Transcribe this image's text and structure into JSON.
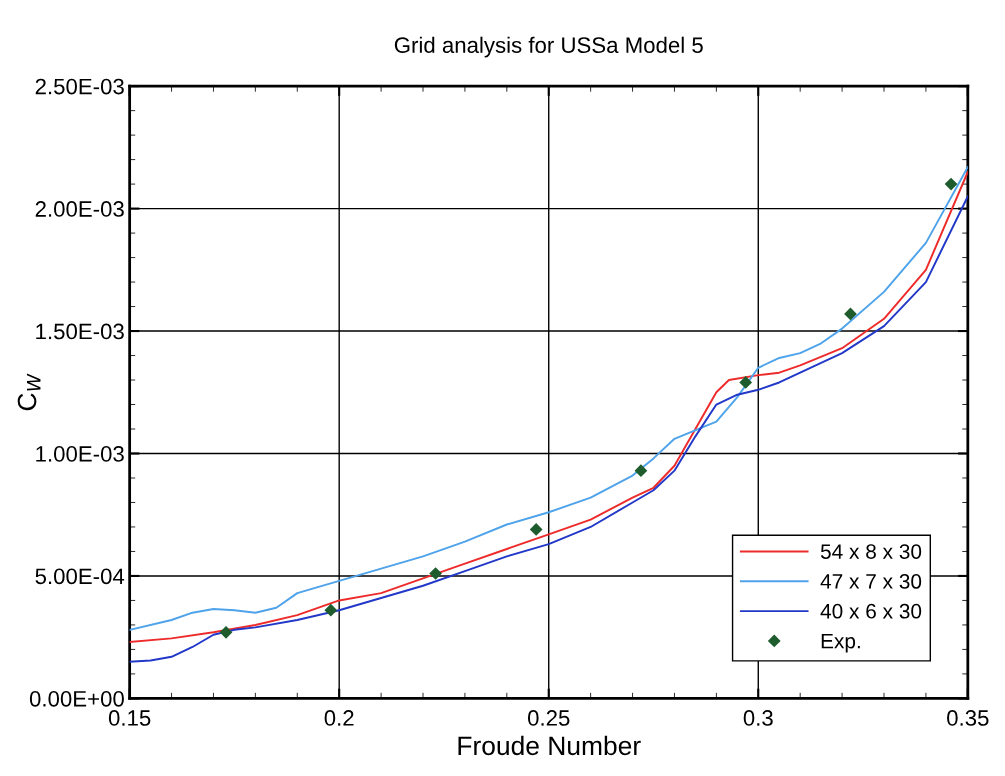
{
  "chart_data": {
    "type": "line",
    "title": "Grid analysis for USSa Model 5",
    "xlabel": "Froude Number",
    "ylabel": "C$_{W}$",
    "xlim": [
      0.15,
      0.35
    ],
    "xticks": [
      0.15,
      0.2,
      0.25,
      0.3,
      0.35
    ],
    "ylim": [
      0,
      0.0025
    ],
    "yticks": [
      {
        "value": 0,
        "label": "0.00E+00"
      },
      {
        "value": 0.0005,
        "label": "5.00E-04"
      },
      {
        "value": 0.001,
        "label": "1.00E-03"
      },
      {
        "value": 0.0015,
        "label": "1.50E-03"
      },
      {
        "value": 0.002,
        "label": "2.00E-03"
      },
      {
        "value": 0.0025,
        "label": "2.50E-03"
      }
    ],
    "grid": true,
    "legend": "bottom right",
    "series": [
      {
        "name": "54 x 8 x 30",
        "color": "#ee2b2b",
        "marker": "none",
        "x": [
          0.15,
          0.16,
          0.17,
          0.18,
          0.19,
          0.2,
          0.21,
          0.22,
          0.23,
          0.24,
          0.25,
          0.26,
          0.27,
          0.275,
          0.28,
          0.285,
          0.29,
          0.293,
          0.3,
          0.305,
          0.31,
          0.32,
          0.33,
          0.34,
          0.35
        ],
        "values": [
          0.00023,
          0.000245,
          0.00027,
          0.0003,
          0.00034,
          0.0004,
          0.00043,
          0.00049,
          0.00055,
          0.00061,
          0.00067,
          0.00073,
          0.00082,
          0.00086,
          0.00095,
          0.0011,
          0.00125,
          0.0013,
          0.00132,
          0.00133,
          0.00136,
          0.00143,
          0.00155,
          0.00175,
          0.00215
        ]
      },
      {
        "name": "47 x 7 x 30",
        "color": "#4ea3ea",
        "marker": "none",
        "x": [
          0.15,
          0.16,
          0.165,
          0.17,
          0.175,
          0.18,
          0.185,
          0.19,
          0.2,
          0.21,
          0.22,
          0.23,
          0.24,
          0.25,
          0.26,
          0.27,
          0.275,
          0.28,
          0.29,
          0.295,
          0.3,
          0.305,
          0.31,
          0.315,
          0.32,
          0.33,
          0.34,
          0.35
        ],
        "values": [
          0.00028,
          0.00032,
          0.00035,
          0.000365,
          0.00036,
          0.00035,
          0.00037,
          0.00043,
          0.00048,
          0.00053,
          0.00058,
          0.00064,
          0.00071,
          0.00076,
          0.00082,
          0.00091,
          0.00098,
          0.00106,
          0.00113,
          0.00123,
          0.00135,
          0.00139,
          0.00141,
          0.00145,
          0.00151,
          0.00166,
          0.00186,
          0.00217
        ]
      },
      {
        "name": "40 x 6 x 30",
        "color": "#2238c8",
        "marker": "none",
        "x": [
          0.15,
          0.155,
          0.16,
          0.165,
          0.17,
          0.175,
          0.18,
          0.19,
          0.2,
          0.21,
          0.22,
          0.23,
          0.24,
          0.25,
          0.26,
          0.27,
          0.275,
          0.28,
          0.285,
          0.29,
          0.295,
          0.3,
          0.305,
          0.31,
          0.32,
          0.33,
          0.34,
          0.35
        ],
        "values": [
          0.00015,
          0.000155,
          0.00017,
          0.00021,
          0.00026,
          0.00028,
          0.00029,
          0.00032,
          0.00036,
          0.00041,
          0.00046,
          0.00052,
          0.00058,
          0.00063,
          0.0007,
          0.0008,
          0.00085,
          0.00093,
          0.00107,
          0.0012,
          0.00124,
          0.00126,
          0.00129,
          0.00133,
          0.00141,
          0.00152,
          0.0017,
          0.00205
        ]
      },
      {
        "name": "Exp.",
        "type": "scatter",
        "color": "#1e5c2e",
        "marker": "diamond",
        "x": [
          0.173,
          0.198,
          0.223,
          0.247,
          0.272,
          0.297,
          0.322,
          0.346
        ],
        "values": [
          0.00027,
          0.00036,
          0.00051,
          0.00069,
          0.00093,
          0.00129,
          0.00157,
          0.0021
        ]
      }
    ]
  }
}
